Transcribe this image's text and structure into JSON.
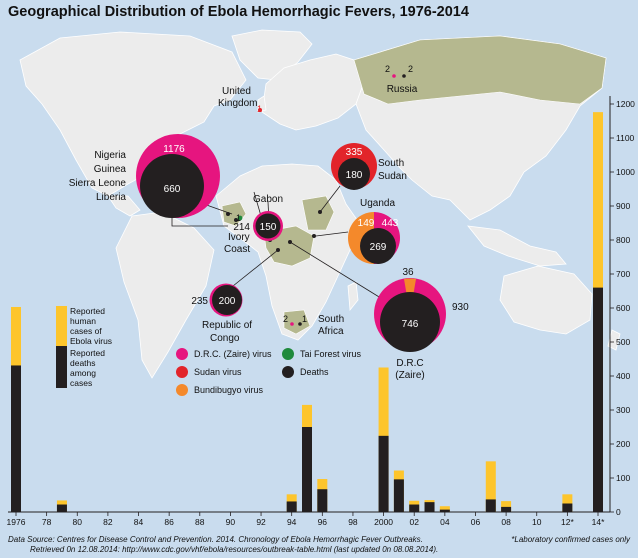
{
  "title": "Geographical Distribution of Ebola Hemorrhagic Fevers, 1976-2014",
  "footer": {
    "source_line1": "Data Source: Centres for Disease Control and Prevention. 2014. Chronology of Ebola Hemorrhagic Fever Outbreaks.",
    "source_line2": "Retrieved 0n 12.08.2014: http://www.cdc.gov/vhf/ebola/resources/outbreak-table.html (last updated 0n 08.08.2014).",
    "note": "*Laboratory confirmed cases only"
  },
  "colors": {
    "cases": "#fdc52c",
    "deaths": "#231f20",
    "zaire": "#e6157f",
    "sudan": "#e2242a",
    "bundibugyo": "#f4892b",
    "tai_forest": "#1f8a3c",
    "sea": "#c9dcee",
    "land": "#ececec",
    "affected_land": "#b5b88f"
  },
  "map_labels": {
    "uk": "United Kingdom",
    "russia": "Russia",
    "west_africa": [
      "Nigeria",
      "Guinea",
      "Sierra Leone",
      "Liberia"
    ],
    "gabon": "Gabon",
    "south_sudan": "South Sudan",
    "uganda": "Uganda",
    "ivory_coast": "Ivory Coast",
    "republic_of_congo": "Republic of Congo",
    "south_africa": "South Africa",
    "drc": "D.R.C (Zaire)"
  },
  "bubbles": [
    {
      "key": "west_africa",
      "virus": "zaire",
      "cases": "1176",
      "deaths": "660"
    },
    {
      "key": "gabon",
      "virus": "zaire",
      "cases": "214",
      "deaths": "150"
    },
    {
      "key": "south_sudan",
      "virus": "sudan",
      "cases": "335",
      "deaths": "180"
    },
    {
      "key": "uganda",
      "virus": "mixed",
      "cases_bundibugyo": "149",
      "cases_sudan": "443",
      "deaths": "269"
    },
    {
      "key": "republic_of_congo",
      "virus": "zaire",
      "cases": "235",
      "deaths": "200"
    },
    {
      "key": "drc",
      "virus": "zaire",
      "cases": "930",
      "deaths": "746",
      "extra": "36"
    },
    {
      "key": "ivory_coast",
      "virus": "tai_forest",
      "cases": "1",
      "deaths": "0"
    },
    {
      "key": "uk",
      "virus": "sudan",
      "cases": "1",
      "deaths": "0"
    },
    {
      "key": "russia",
      "virus": "zaire",
      "cases": "2",
      "deaths": "2"
    },
    {
      "key": "south_africa",
      "virus": "zaire",
      "cases": "2",
      "deaths": "1"
    }
  ],
  "legend": {
    "cases": "Reported human cases of Ebola virus",
    "deaths": "Reported deaths among cases",
    "zaire": "D.R.C. (Zaire) virus",
    "sudan": "Sudan virus",
    "bundibugyo": "Bundibugyo virus",
    "tai_forest": "Tai Forest virus",
    "deaths_dot": "Deaths"
  },
  "chart_data": {
    "type": "bar",
    "title": "",
    "xlabel": "",
    "ylabel": "",
    "ylim": [
      0,
      1200
    ],
    "yticks": [
      0,
      100,
      200,
      300,
      400,
      500,
      600,
      700,
      800,
      900,
      1000,
      1100,
      1200
    ],
    "xrange": [
      1976,
      2014
    ],
    "xticks": [
      {
        "year": 1976,
        "label": "1976"
      },
      {
        "year": 1978,
        "label": "78"
      },
      {
        "year": 1980,
        "label": "80"
      },
      {
        "year": 1982,
        "label": "82"
      },
      {
        "year": 1984,
        "label": "84"
      },
      {
        "year": 1986,
        "label": "86"
      },
      {
        "year": 1988,
        "label": "88"
      },
      {
        "year": 1990,
        "label": "90"
      },
      {
        "year": 1992,
        "label": "92"
      },
      {
        "year": 1994,
        "label": "94"
      },
      {
        "year": 1996,
        "label": "96"
      },
      {
        "year": 1998,
        "label": "98"
      },
      {
        "year": 2000,
        "label": "2000"
      },
      {
        "year": 2002,
        "label": "02"
      },
      {
        "year": 2004,
        "label": "04"
      },
      {
        "year": 2006,
        "label": "06"
      },
      {
        "year": 2008,
        "label": "08"
      },
      {
        "year": 2010,
        "label": "10"
      },
      {
        "year": 2012,
        "label": "12*"
      },
      {
        "year": 2014,
        "label": "14*"
      }
    ],
    "years": [
      1976,
      1979,
      1994,
      1995,
      1996,
      2000,
      2001,
      2002,
      2003,
      2004,
      2007,
      2008,
      2012,
      2014
    ],
    "series": [
      {
        "name": "Reported human cases of Ebola virus",
        "values": [
          603,
          34,
          52,
          315,
          97,
          425,
          122,
          33,
          35,
          17,
          149,
          32,
          52,
          1176
        ]
      },
      {
        "name": "Reported deaths among cases",
        "values": [
          431,
          22,
          31,
          250,
          67,
          224,
          96,
          22,
          29,
          7,
          37,
          15,
          25,
          660
        ]
      }
    ]
  }
}
